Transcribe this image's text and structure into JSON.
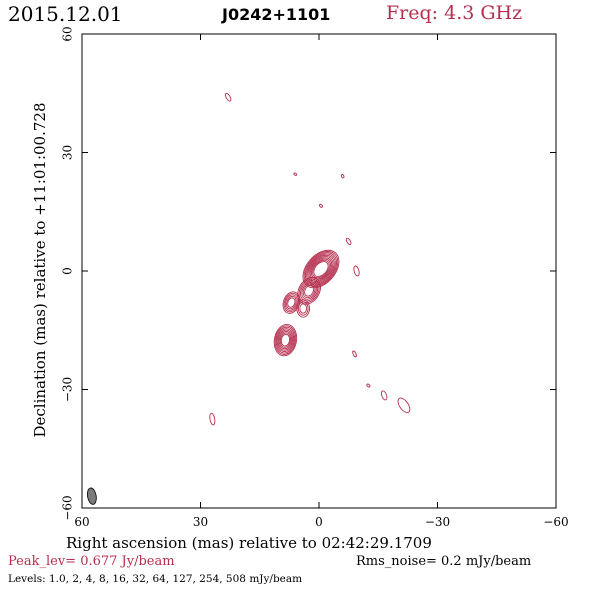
{
  "header": {
    "date": "2015.12.01",
    "source": "J0242+1101",
    "frequency": "Freq: 4.3 GHz"
  },
  "footer": {
    "peak": "Peak_lev=  0.677 Jy/beam",
    "noise": "Rms_noise=  0.2 mJy/beam",
    "levels": "Levels: 1.0,   2,   4,   8,  16,  32,  64, 127, 254, 508 mJy/beam"
  },
  "colors": {
    "contour": "#b5304f",
    "axes": "#000000",
    "beam": "#7a7a7a"
  },
  "chart_data": {
    "type": "contour",
    "xlabel": "Right ascension (mas) relative to 02:42:29.1709",
    "ylabel": "Declination (mas) relative to +11:01:00.728",
    "xlim": [
      60,
      -60
    ],
    "ylim": [
      -60,
      60
    ],
    "x_ticks": [
      60,
      30,
      0,
      -30,
      -60
    ],
    "y_ticks": [
      -60,
      -30,
      0,
      30,
      60
    ],
    "x_tick_labels": [
      "60",
      "30",
      "0",
      "−30",
      "−60"
    ],
    "y_tick_labels": [
      "−60",
      "−30",
      "0",
      "30",
      "60"
    ],
    "levels_mJy_per_beam": [
      1.0,
      2,
      4,
      8,
      16,
      32,
      64,
      127,
      254,
      508
    ],
    "peak_Jy_per_beam": 0.677,
    "rms_noise_mJy_per_beam": 0.2,
    "beam": {
      "x": 57.5,
      "y": -57,
      "major": 4.2,
      "minor": 2.2,
      "pa": -10
    },
    "components": [
      {
        "x": -0.5,
        "y": 0.5,
        "rmax": 5.5,
        "rmin": 3.6,
        "angle": 42,
        "ring_count": 10,
        "step": 0.33
      },
      {
        "x": 2.5,
        "y": -5,
        "rmax": 3.6,
        "rmin": 2.6,
        "angle": 30,
        "ring_count": 6,
        "step": 0.28
      },
      {
        "x": 7,
        "y": -8,
        "rmax": 2.8,
        "rmin": 2.0,
        "angle": 20,
        "ring_count": 5,
        "step": 0.3
      },
      {
        "x": 4,
        "y": -9.5,
        "rmax": 2.2,
        "rmin": 1.6,
        "angle": 0,
        "ring_count": 3,
        "step": 0.3
      },
      {
        "x": 8.5,
        "y": -17.5,
        "rmax": 4.0,
        "rmin": 2.8,
        "angle": 10,
        "ring_count": 8,
        "step": 0.28
      }
    ],
    "isolated_features": [
      {
        "x": 23,
        "y": 44,
        "rx": 1.1,
        "ry": 0.5,
        "angle": 60
      },
      {
        "x": 6,
        "y": 24.5,
        "rx": 0.4,
        "ry": 0.25,
        "angle": 30
      },
      {
        "x": -6,
        "y": 24,
        "rx": 0.45,
        "ry": 0.3,
        "angle": 70
      },
      {
        "x": -0.5,
        "y": 16.5,
        "rx": 0.45,
        "ry": 0.3,
        "angle": 40
      },
      {
        "x": -7.5,
        "y": 7.5,
        "rx": 0.9,
        "ry": 0.45,
        "angle": 60
      },
      {
        "x": -9.5,
        "y": 0,
        "rx": 1.3,
        "ry": 0.6,
        "angle": 75
      },
      {
        "x": -9,
        "y": -21,
        "rx": 0.8,
        "ry": 0.35,
        "angle": 65
      },
      {
        "x": -12.5,
        "y": -29,
        "rx": 0.45,
        "ry": 0.3,
        "angle": 40
      },
      {
        "x": -16.5,
        "y": -31.5,
        "rx": 1.2,
        "ry": 0.6,
        "angle": 70
      },
      {
        "x": -21.5,
        "y": -34,
        "rx": 2.1,
        "ry": 1.1,
        "angle": 55
      },
      {
        "x": 27,
        "y": -37.5,
        "rx": 1.5,
        "ry": 0.6,
        "angle": 80
      }
    ]
  }
}
